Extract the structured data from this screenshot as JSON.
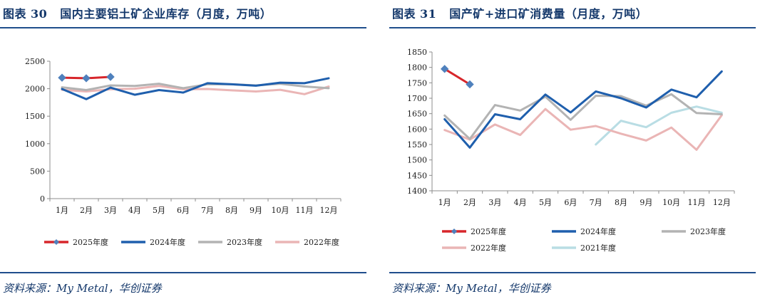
{
  "left": {
    "figure_label": "图表",
    "figure_number": "30",
    "title": "国内主要铝土矿企业库存（月度，万吨）",
    "source": "资料来源：My Metal，华创证券"
  },
  "right": {
    "figure_label": "图表",
    "figure_number": "31",
    "title": "国产矿+进口矿消费量（月度，万吨）",
    "source": "资料来源：My Metal，华创证券"
  },
  "chart_data": [
    {
      "type": "line",
      "categories": [
        "1月",
        "2月",
        "3月",
        "4月",
        "5月",
        "6月",
        "7月",
        "8月",
        "9月",
        "10月",
        "11月",
        "12月"
      ],
      "ylim": [
        0,
        2500
      ],
      "yticks": [
        0,
        500,
        1000,
        1500,
        2000,
        2500
      ],
      "grid": false,
      "legend_position": "bottom",
      "series": [
        {
          "name": "2025年度",
          "color": "#d7262b",
          "marker": "diamond",
          "values": [
            2200,
            2190,
            2215,
            null,
            null,
            null,
            null,
            null,
            null,
            null,
            null,
            null
          ]
        },
        {
          "name": "2024年度",
          "color": "#1f5fad",
          "values": [
            1995,
            1810,
            2020,
            1890,
            1975,
            1930,
            2100,
            2080,
            2055,
            2110,
            2100,
            2190
          ]
        },
        {
          "name": "2023年度",
          "color": "#b3b3b3",
          "values": [
            2025,
            1975,
            2060,
            2050,
            2090,
            2010,
            2080,
            2080,
            2060,
            2090,
            2040,
            2010
          ]
        },
        {
          "name": "2022年度",
          "color": "#eab5b5",
          "values": [
            1980,
            1950,
            1990,
            2000,
            2050,
            1990,
            1995,
            1970,
            1950,
            1980,
            1900,
            2040
          ]
        }
      ]
    },
    {
      "type": "line",
      "categories": [
        "1月",
        "2月",
        "3月",
        "4月",
        "5月",
        "6月",
        "7月",
        "8月",
        "9月",
        "10月",
        "11月",
        "12月"
      ],
      "ylim": [
        1400,
        1850
      ],
      "yticks": [
        1400,
        1450,
        1500,
        1550,
        1600,
        1650,
        1700,
        1750,
        1800,
        1850
      ],
      "grid": false,
      "legend_position": "bottom",
      "series": [
        {
          "name": "2025年度",
          "color": "#d7262b",
          "marker": "diamond",
          "values": [
            1795,
            1745,
            null,
            null,
            null,
            null,
            null,
            null,
            null,
            null,
            null,
            null
          ]
        },
        {
          "name": "2024年度",
          "color": "#1f5fad",
          "values": [
            1632,
            1540,
            1648,
            1632,
            1712,
            1654,
            1722,
            1700,
            1670,
            1728,
            1703,
            1787
          ]
        },
        {
          "name": "2023年度",
          "color": "#b3b3b3",
          "values": [
            1644,
            1568,
            1678,
            1660,
            1705,
            1630,
            1708,
            1707,
            1676,
            1713,
            1652,
            1648
          ]
        },
        {
          "name": "2022年度",
          "color": "#eab5b5",
          "values": [
            1597,
            1566,
            1615,
            1581,
            1665,
            1598,
            1610,
            1585,
            1563,
            1605,
            1533,
            1645
          ]
        },
        {
          "name": "2021年度",
          "color": "#b9dde4",
          "values": [
            null,
            null,
            null,
            null,
            null,
            null,
            1550,
            1627,
            1606,
            1653,
            1673,
            1653
          ]
        }
      ]
    }
  ]
}
